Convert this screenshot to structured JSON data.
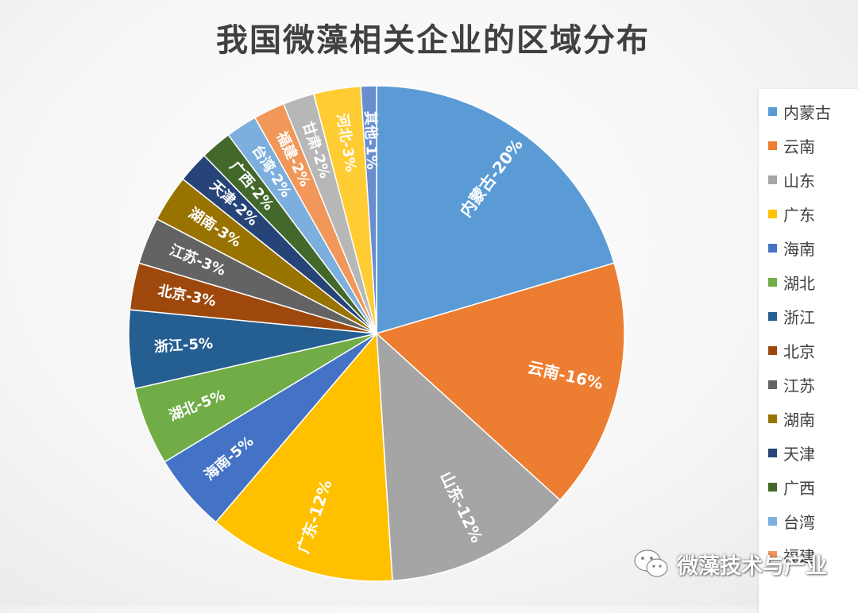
{
  "chart_data": {
    "type": "pie",
    "title": "我国微藻相关企业的区域分布",
    "categories": [
      "内蒙古",
      "云南",
      "山东",
      "广东",
      "海南",
      "湖北",
      "浙江",
      "北京",
      "江苏",
      "湖南",
      "天津",
      "广西",
      "台湾",
      "福建",
      "甘肃",
      "河北",
      "其他"
    ],
    "values": [
      20,
      16,
      12,
      12,
      5,
      5,
      5,
      3,
      3,
      3,
      2,
      2,
      2,
      2,
      2,
      3,
      1
    ],
    "slice_labels": [
      "内蒙古-20%",
      "云南-16%",
      "山东-12%",
      "广东-12%",
      "海南-5%",
      "湖北-5%",
      "浙江-5%",
      "北京-3%",
      "江苏-3%",
      "湖南-3%",
      "天津-2%",
      "广西-2%",
      "台湾-2%",
      "福建-2%",
      "甘肃-2%",
      "河北-3%",
      "其他-1%"
    ],
    "colors": [
      "#5b9bd5",
      "#ed7d31",
      "#a5a5a5",
      "#ffc000",
      "#4472c4",
      "#70ad47",
      "#255e91",
      "#9e480e",
      "#636363",
      "#997300",
      "#264478",
      "#43682b",
      "#7cafdd",
      "#f1975a",
      "#b7b7b7",
      "#ffcd33",
      "#698ed0"
    ],
    "legend_visible": [
      "内蒙古",
      "云南",
      "山东",
      "广东",
      "海南",
      "湖北",
      "浙江",
      "北京",
      "江苏",
      "湖南",
      "天津",
      "广西",
      "台湾",
      "福建"
    ],
    "legend_position": "right"
  },
  "watermark": {
    "text": "微藻技术与产业",
    "icon": "wechat-icon"
  }
}
